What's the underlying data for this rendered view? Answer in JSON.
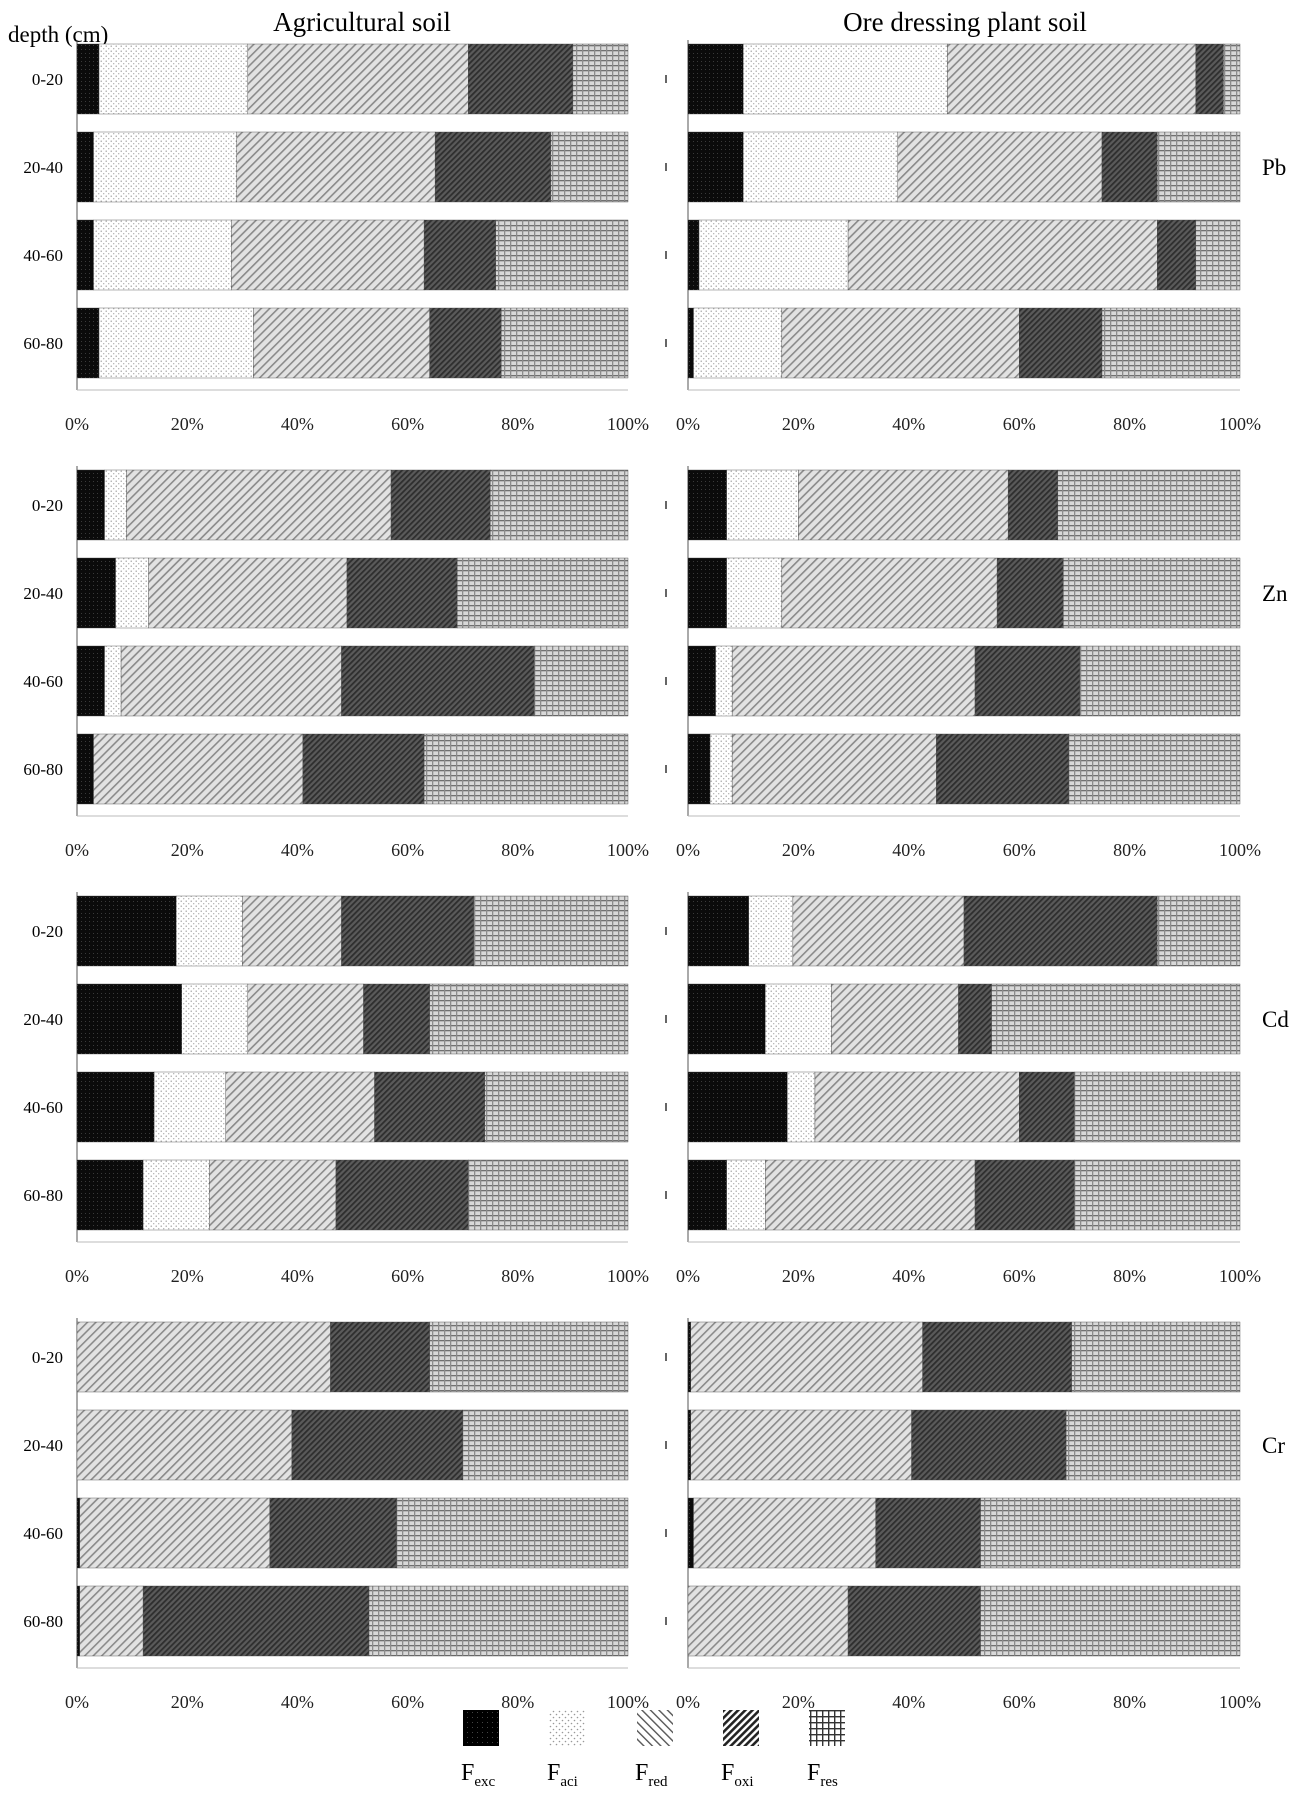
{
  "figure": {
    "corner_label": "depth (cm)",
    "column_titles": [
      "Agricultural soil",
      "Ore dressing plant soil"
    ],
    "legend": [
      {
        "key": "exc",
        "base": "F",
        "sub": "exc"
      },
      {
        "key": "aci",
        "base": "F",
        "sub": "aci"
      },
      {
        "key": "red",
        "base": "F",
        "sub": "red"
      },
      {
        "key": "oxi",
        "base": "F",
        "sub": "oxi"
      },
      {
        "key": "res",
        "base": "F",
        "sub": "res"
      }
    ]
  },
  "chart_data": [
    {
      "type": "bar",
      "orientation": "horizontal",
      "stacked": "percent",
      "metal": "Pb",
      "soil": "Agricultural soil",
      "categories": [
        "0-20",
        "20-40",
        "40-60",
        "60-80"
      ],
      "xlim": [
        0,
        100
      ],
      "xticks": [
        "0%",
        "20%",
        "40%",
        "60%",
        "80%",
        "100%"
      ],
      "series": [
        {
          "name": "exc",
          "values": [
            4,
            3,
            3,
            4
          ]
        },
        {
          "name": "aci",
          "values": [
            27,
            26,
            25,
            28
          ]
        },
        {
          "name": "red",
          "values": [
            40,
            36,
            35,
            32
          ]
        },
        {
          "name": "oxi",
          "values": [
            19,
            21,
            13,
            13
          ]
        },
        {
          "name": "res",
          "values": [
            10,
            14,
            24,
            23
          ]
        }
      ]
    },
    {
      "type": "bar",
      "orientation": "horizontal",
      "stacked": "percent",
      "metal": "Pb",
      "soil": "Ore dressing plant soil",
      "categories": [
        "0-20",
        "20-40",
        "40-60",
        "60-80"
      ],
      "xlim": [
        0,
        100
      ],
      "xticks": [
        "0%",
        "20%",
        "40%",
        "60%",
        "80%",
        "100%"
      ],
      "series": [
        {
          "name": "exc",
          "values": [
            10,
            10,
            2,
            1
          ]
        },
        {
          "name": "aci",
          "values": [
            37,
            28,
            27,
            16
          ]
        },
        {
          "name": "red",
          "values": [
            45,
            37,
            56,
            43
          ]
        },
        {
          "name": "oxi",
          "values": [
            5,
            10,
            7,
            15
          ]
        },
        {
          "name": "res",
          "values": [
            3,
            15,
            8,
            25
          ]
        }
      ]
    },
    {
      "type": "bar",
      "orientation": "horizontal",
      "stacked": "percent",
      "metal": "Zn",
      "soil": "Agricultural soil",
      "categories": [
        "0-20",
        "20-40",
        "40-60",
        "60-80"
      ],
      "xlim": [
        0,
        100
      ],
      "xticks": [
        "0%",
        "20%",
        "40%",
        "60%",
        "80%",
        "100%"
      ],
      "series": [
        {
          "name": "exc",
          "values": [
            5,
            7,
            5,
            3
          ]
        },
        {
          "name": "aci",
          "values": [
            4,
            6,
            3,
            0
          ]
        },
        {
          "name": "red",
          "values": [
            48,
            36,
            40,
            38
          ]
        },
        {
          "name": "oxi",
          "values": [
            18,
            20,
            35,
            22
          ]
        },
        {
          "name": "res",
          "values": [
            25,
            31,
            17,
            37
          ]
        }
      ]
    },
    {
      "type": "bar",
      "orientation": "horizontal",
      "stacked": "percent",
      "metal": "Zn",
      "soil": "Ore dressing plant soil",
      "categories": [
        "0-20",
        "20-40",
        "40-60",
        "60-80"
      ],
      "xlim": [
        0,
        100
      ],
      "xticks": [
        "0%",
        "20%",
        "40%",
        "60%",
        "80%",
        "100%"
      ],
      "series": [
        {
          "name": "exc",
          "values": [
            7,
            7,
            5,
            4
          ]
        },
        {
          "name": "aci",
          "values": [
            13,
            10,
            3,
            4
          ]
        },
        {
          "name": "red",
          "values": [
            38,
            39,
            44,
            37
          ]
        },
        {
          "name": "oxi",
          "values": [
            9,
            12,
            19,
            24
          ]
        },
        {
          "name": "res",
          "values": [
            33,
            32,
            29,
            31
          ]
        }
      ]
    },
    {
      "type": "bar",
      "orientation": "horizontal",
      "stacked": "percent",
      "metal": "Cd",
      "soil": "Agricultural soil",
      "categories": [
        "0-20",
        "20-40",
        "40-60",
        "60-80"
      ],
      "xlim": [
        0,
        100
      ],
      "xticks": [
        "0%",
        "20%",
        "40%",
        "60%",
        "80%",
        "100%"
      ],
      "series": [
        {
          "name": "exc",
          "values": [
            18,
            19,
            14,
            12
          ]
        },
        {
          "name": "aci",
          "values": [
            12,
            12,
            13,
            12
          ]
        },
        {
          "name": "red",
          "values": [
            18,
            21,
            27,
            23
          ]
        },
        {
          "name": "oxi",
          "values": [
            24,
            12,
            20,
            24
          ]
        },
        {
          "name": "res",
          "values": [
            28,
            36,
            26,
            29
          ]
        }
      ]
    },
    {
      "type": "bar",
      "orientation": "horizontal",
      "stacked": "percent",
      "metal": "Cd",
      "soil": "Ore dressing plant soil",
      "categories": [
        "0-20",
        "20-40",
        "40-60",
        "60-80"
      ],
      "xlim": [
        0,
        100
      ],
      "xticks": [
        "0%",
        "20%",
        "40%",
        "60%",
        "80%",
        "100%"
      ],
      "series": [
        {
          "name": "exc",
          "values": [
            11,
            14,
            18,
            7
          ]
        },
        {
          "name": "aci",
          "values": [
            8,
            12,
            5,
            7
          ]
        },
        {
          "name": "red",
          "values": [
            31,
            23,
            37,
            38
          ]
        },
        {
          "name": "oxi",
          "values": [
            35,
            6,
            10,
            18
          ]
        },
        {
          "name": "res",
          "values": [
            15,
            45,
            30,
            30
          ]
        }
      ]
    },
    {
      "type": "bar",
      "orientation": "horizontal",
      "stacked": "percent",
      "metal": "Cr",
      "soil": "Agricultural soil",
      "categories": [
        "0-20",
        "20-40",
        "40-60",
        "60-80"
      ],
      "xlim": [
        0,
        100
      ],
      "xticks": [
        "0%",
        "20%",
        "40%",
        "60%",
        "80%",
        "100%"
      ],
      "series": [
        {
          "name": "exc",
          "values": [
            0,
            0,
            0.5,
            0.5
          ]
        },
        {
          "name": "aci",
          "values": [
            0,
            0,
            0,
            0
          ]
        },
        {
          "name": "red",
          "values": [
            46,
            39,
            34.5,
            11.5
          ]
        },
        {
          "name": "oxi",
          "values": [
            18,
            31,
            23,
            41
          ]
        },
        {
          "name": "res",
          "values": [
            36,
            30,
            42,
            47
          ]
        }
      ]
    },
    {
      "type": "bar",
      "orientation": "horizontal",
      "stacked": "percent",
      "metal": "Cr",
      "soil": "Ore dressing plant soil",
      "categories": [
        "0-20",
        "20-40",
        "40-60",
        "60-80"
      ],
      "xlim": [
        0,
        100
      ],
      "xticks": [
        "0%",
        "20%",
        "40%",
        "60%",
        "80%",
        "100%"
      ],
      "series": [
        {
          "name": "exc",
          "values": [
            0.5,
            0.5,
            1,
            0
          ]
        },
        {
          "name": "aci",
          "values": [
            0,
            0,
            0,
            0
          ]
        },
        {
          "name": "red",
          "values": [
            42,
            40,
            33,
            29
          ]
        },
        {
          "name": "oxi",
          "values": [
            27,
            28,
            19,
            24
          ]
        },
        {
          "name": "res",
          "values": [
            30.5,
            31.5,
            47,
            47
          ]
        }
      ]
    }
  ]
}
